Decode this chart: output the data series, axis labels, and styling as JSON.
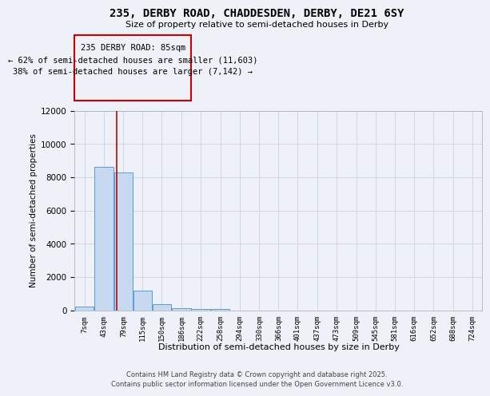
{
  "title_line1": "235, DERBY ROAD, CHADDESDEN, DERBY, DE21 6SY",
  "title_line2": "Size of property relative to semi-detached houses in Derby",
  "xlabel": "Distribution of semi-detached houses by size in Derby",
  "ylabel": "Number of semi-detached properties",
  "bin_labels": [
    "7sqm",
    "43sqm",
    "79sqm",
    "115sqm",
    "150sqm",
    "186sqm",
    "222sqm",
    "258sqm",
    "294sqm",
    "330sqm",
    "366sqm",
    "401sqm",
    "437sqm",
    "473sqm",
    "509sqm",
    "545sqm",
    "581sqm",
    "616sqm",
    "652sqm",
    "688sqm",
    "724sqm"
  ],
  "bin_edges": [
    7,
    43,
    79,
    115,
    150,
    186,
    222,
    258,
    294,
    330,
    366,
    401,
    437,
    473,
    509,
    545,
    581,
    616,
    652,
    688,
    724,
    760
  ],
  "bar_heights": [
    200,
    8600,
    8300,
    1200,
    350,
    100,
    80,
    50,
    0,
    0,
    0,
    0,
    0,
    0,
    0,
    0,
    0,
    0,
    0,
    0,
    0
  ],
  "bar_color": "#c6d9f0",
  "bar_edge_color": "#5b9bd5",
  "property_size": 85,
  "red_line_color": "#cc0000",
  "annotation_text_line1": "235 DERBY ROAD: 85sqm",
  "annotation_text_line2": "← 62% of semi-detached houses are smaller (11,603)",
  "annotation_text_line3": "38% of semi-detached houses are larger (7,142) →",
  "ylim": [
    0,
    12000
  ],
  "yticks": [
    0,
    2000,
    4000,
    6000,
    8000,
    10000,
    12000
  ],
  "grid_color": "#d0d8e8",
  "footer_line1": "Contains HM Land Registry data © Crown copyright and database right 2025.",
  "footer_line2": "Contains public sector information licensed under the Open Government Licence v3.0.",
  "bg_color": "#eef2f8"
}
